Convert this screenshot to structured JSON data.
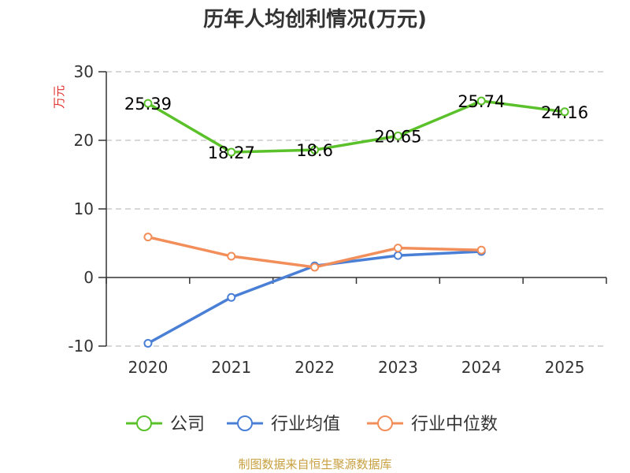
{
  "chart_data": {
    "type": "line",
    "title": "历年人均创利情况(万元)",
    "ylabel": "万元",
    "categories": [
      "2020",
      "2021",
      "2022",
      "2023",
      "2024",
      "2025"
    ],
    "ylim": [
      -10,
      30
    ],
    "yticks": [
      30,
      20,
      10,
      0,
      -10
    ],
    "series": [
      {
        "name": "公司",
        "color": "#5ac12a",
        "values": [
          25.39,
          18.27,
          18.6,
          20.65,
          25.74,
          24.16
        ],
        "labels": true
      },
      {
        "name": "行业均值",
        "color": "#4a7fd6",
        "values": [
          -9.6,
          -2.9,
          1.7,
          3.2,
          3.8,
          null
        ],
        "labels": false
      },
      {
        "name": "行业中位数",
        "color": "#f28e5a",
        "values": [
          5.9,
          3.1,
          1.5,
          4.3,
          4.0,
          null
        ],
        "labels": false
      }
    ],
    "grid": true,
    "legend": "bottom"
  },
  "source": "制图数据来自恒生聚源数据库"
}
